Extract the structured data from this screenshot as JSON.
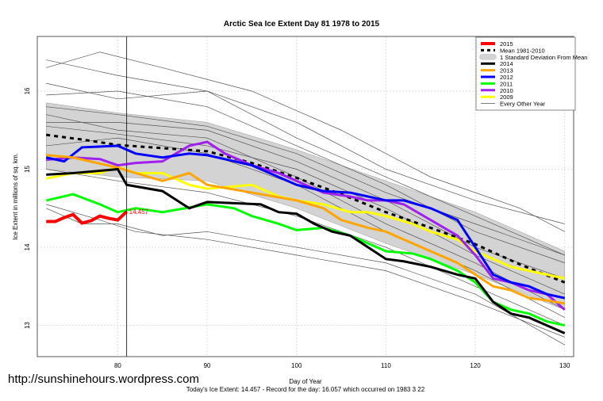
{
  "watermark": "http://sunshinehours.wordpress.com",
  "chart_data": {
    "type": "line",
    "title": "Arctic Sea Ice Extent Day 81 1978 to 2015",
    "xlabel": "Day of Year",
    "ylabel": "Ice Extent in millions of sq. km.",
    "subtitle": "Today's Ice Extent: 14.457  - Record for the day: 16.057 which occurred on 1983 3 22",
    "xlim": [
      71,
      131
    ],
    "ylim": [
      12.6,
      16.7
    ],
    "xticks": [
      80,
      90,
      100,
      110,
      120,
      130
    ],
    "yticks": [
      13,
      14,
      15,
      16
    ],
    "grid": true,
    "legend_position": "top-right",
    "marker_day": 81,
    "marker_label": "14.457",
    "sd_band": {
      "name": "1 Standard Deviation From Mean",
      "color": "#d3d3d3",
      "upper": [
        [
          72,
          15.85
        ],
        [
          80,
          15.72
        ],
        [
          90,
          15.6
        ],
        [
          100,
          15.25
        ],
        [
          110,
          14.85
        ],
        [
          120,
          14.45
        ],
        [
          130,
          13.95
        ]
      ],
      "lower": [
        [
          72,
          15.0
        ],
        [
          80,
          14.9
        ],
        [
          90,
          14.85
        ],
        [
          100,
          14.5
        ],
        [
          110,
          14.05
        ],
        [
          120,
          13.65
        ],
        [
          130,
          13.2
        ]
      ]
    },
    "mean": {
      "name": "Mean 1981-2010",
      "color": "#000000",
      "points": [
        [
          72,
          15.44
        ],
        [
          76,
          15.38
        ],
        [
          80,
          15.31
        ],
        [
          85,
          15.27
        ],
        [
          90,
          15.23
        ],
        [
          95,
          15.08
        ],
        [
          100,
          14.89
        ],
        [
          105,
          14.68
        ],
        [
          110,
          14.45
        ],
        [
          115,
          14.25
        ],
        [
          120,
          14.04
        ],
        [
          125,
          13.78
        ],
        [
          130,
          13.55
        ]
      ]
    },
    "series": [
      {
        "name": "2015",
        "color": "#ff0000",
        "width": 4,
        "points": [
          [
            72,
            14.33
          ],
          [
            73,
            14.33
          ],
          [
            74,
            14.38
          ],
          [
            75,
            14.42
          ],
          [
            76,
            14.31
          ],
          [
            77,
            14.34
          ],
          [
            78,
            14.4
          ],
          [
            79,
            14.37
          ],
          [
            80,
            14.35
          ],
          [
            81,
            14.457
          ]
        ]
      },
      {
        "name": "2014",
        "color": "#000000",
        "width": 3,
        "points": [
          [
            72,
            14.93
          ],
          [
            75,
            14.95
          ],
          [
            78,
            14.98
          ],
          [
            80,
            15.0
          ],
          [
            81,
            14.8
          ],
          [
            85,
            14.72
          ],
          [
            88,
            14.5
          ],
          [
            90,
            14.58
          ],
          [
            96,
            14.55
          ],
          [
            98,
            14.45
          ],
          [
            100,
            14.43
          ],
          [
            102,
            14.3
          ],
          [
            104,
            14.2
          ],
          [
            106,
            14.15
          ],
          [
            108,
            14.0
          ],
          [
            110,
            13.85
          ],
          [
            112,
            13.82
          ],
          [
            115,
            13.75
          ],
          [
            118,
            13.65
          ],
          [
            120,
            13.6
          ],
          [
            122,
            13.3
          ],
          [
            124,
            13.15
          ],
          [
            126,
            13.1
          ],
          [
            128,
            13.0
          ],
          [
            130,
            12.9
          ]
        ]
      },
      {
        "name": "2013",
        "color": "#ffa500",
        "width": 3,
        "points": [
          [
            72,
            15.18
          ],
          [
            75,
            15.15
          ],
          [
            80,
            15.02
          ],
          [
            82,
            14.95
          ],
          [
            85,
            14.85
          ],
          [
            88,
            14.95
          ],
          [
            90,
            14.8
          ],
          [
            95,
            14.7
          ],
          [
            100,
            14.6
          ],
          [
            103,
            14.5
          ],
          [
            105,
            14.35
          ],
          [
            108,
            14.25
          ],
          [
            110,
            14.2
          ],
          [
            112,
            14.1
          ],
          [
            115,
            13.95
          ],
          [
            118,
            13.8
          ],
          [
            120,
            13.65
          ],
          [
            122,
            13.5
          ],
          [
            124,
            13.45
          ],
          [
            126,
            13.35
          ],
          [
            128,
            13.32
          ],
          [
            130,
            13.28
          ]
        ]
      },
      {
        "name": "2012",
        "color": "#0000ff",
        "width": 3,
        "points": [
          [
            72,
            15.15
          ],
          [
            74,
            15.1
          ],
          [
            76,
            15.28
          ],
          [
            80,
            15.3
          ],
          [
            82,
            15.2
          ],
          [
            85,
            15.15
          ],
          [
            88,
            15.2
          ],
          [
            90,
            15.18
          ],
          [
            95,
            15.05
          ],
          [
            98,
            14.9
          ],
          [
            100,
            14.8
          ],
          [
            103,
            14.72
          ],
          [
            106,
            14.7
          ],
          [
            108,
            14.65
          ],
          [
            110,
            14.6
          ],
          [
            112,
            14.6
          ],
          [
            115,
            14.5
          ],
          [
            118,
            14.35
          ],
          [
            120,
            14.0
          ],
          [
            122,
            13.65
          ],
          [
            124,
            13.55
          ],
          [
            126,
            13.5
          ],
          [
            128,
            13.4
          ],
          [
            130,
            13.35
          ]
        ]
      },
      {
        "name": "2011",
        "color": "#00ff00",
        "width": 3,
        "points": [
          [
            72,
            14.6
          ],
          [
            75,
            14.68
          ],
          [
            78,
            14.55
          ],
          [
            80,
            14.45
          ],
          [
            82,
            14.5
          ],
          [
            85,
            14.45
          ],
          [
            90,
            14.55
          ],
          [
            93,
            14.5
          ],
          [
            95,
            14.4
          ],
          [
            98,
            14.3
          ],
          [
            100,
            14.22
          ],
          [
            103,
            14.25
          ],
          [
            106,
            14.15
          ],
          [
            108,
            14.05
          ],
          [
            110,
            13.95
          ],
          [
            113,
            13.92
          ],
          [
            115,
            13.85
          ],
          [
            118,
            13.7
          ],
          [
            120,
            13.55
          ],
          [
            122,
            13.3
          ],
          [
            124,
            13.2
          ],
          [
            126,
            13.15
          ],
          [
            128,
            13.05
          ],
          [
            130,
            13.0
          ]
        ]
      },
      {
        "name": "2010",
        "color": "#a020f0",
        "width": 3,
        "points": [
          [
            72,
            15.12
          ],
          [
            75,
            15.15
          ],
          [
            78,
            15.13
          ],
          [
            80,
            15.05
          ],
          [
            82,
            15.08
          ],
          [
            85,
            15.1
          ],
          [
            88,
            15.3
          ],
          [
            90,
            15.35
          ],
          [
            92,
            15.2
          ],
          [
            95,
            15.05
          ],
          [
            98,
            14.95
          ],
          [
            100,
            14.85
          ],
          [
            103,
            14.7
          ],
          [
            106,
            14.65
          ],
          [
            108,
            14.6
          ],
          [
            110,
            14.6
          ],
          [
            112,
            14.55
          ],
          [
            115,
            14.35
          ],
          [
            118,
            14.15
          ],
          [
            120,
            13.9
          ],
          [
            122,
            13.6
          ],
          [
            124,
            13.55
          ],
          [
            126,
            13.45
          ],
          [
            128,
            13.4
          ],
          [
            130,
            13.2
          ]
        ]
      },
      {
        "name": "2009",
        "color": "#ffff00",
        "width": 3,
        "points": [
          [
            72,
            14.88
          ],
          [
            75,
            14.95
          ],
          [
            78,
            14.95
          ],
          [
            80,
            15.03
          ],
          [
            82,
            14.95
          ],
          [
            85,
            14.95
          ],
          [
            88,
            14.8
          ],
          [
            90,
            14.75
          ],
          [
            95,
            14.8
          ],
          [
            98,
            14.65
          ],
          [
            100,
            14.6
          ],
          [
            103,
            14.55
          ],
          [
            106,
            14.45
          ],
          [
            108,
            14.45
          ],
          [
            110,
            14.4
          ],
          [
            113,
            14.3
          ],
          [
            115,
            14.2
          ],
          [
            118,
            14.1
          ],
          [
            120,
            13.95
          ],
          [
            122,
            13.85
          ],
          [
            124,
            13.75
          ],
          [
            126,
            13.7
          ],
          [
            128,
            13.65
          ],
          [
            130,
            13.6
          ]
        ]
      }
    ],
    "other_years": {
      "name": "Every Other Year",
      "color": "#555555",
      "lines": [
        [
          [
            72,
            16.4
          ],
          [
            80,
            16.2
          ],
          [
            90,
            16.0
          ],
          [
            100,
            15.6
          ],
          [
            110,
            15.0
          ],
          [
            120,
            14.6
          ],
          [
            130,
            14.3
          ]
        ],
        [
          [
            72,
            16.3
          ],
          [
            78,
            16.5
          ],
          [
            85,
            16.3
          ],
          [
            95,
            16.0
          ],
          [
            105,
            15.5
          ],
          [
            115,
            14.9
          ],
          [
            125,
            14.5
          ],
          [
            130,
            14.2
          ]
        ],
        [
          [
            72,
            16.1
          ],
          [
            80,
            15.9
          ],
          [
            90,
            16.0
          ],
          [
            100,
            15.4
          ],
          [
            110,
            14.9
          ],
          [
            120,
            14.4
          ],
          [
            130,
            13.9
          ]
        ],
        [
          [
            72,
            15.95
          ],
          [
            80,
            16.0
          ],
          [
            90,
            15.8
          ],
          [
            100,
            15.3
          ],
          [
            110,
            14.8
          ],
          [
            120,
            14.2
          ],
          [
            130,
            13.8
          ]
        ],
        [
          [
            72,
            15.6
          ],
          [
            80,
            15.6
          ],
          [
            90,
            15.5
          ],
          [
            100,
            15.1
          ],
          [
            110,
            14.6
          ],
          [
            120,
            14.0
          ],
          [
            130,
            13.6
          ]
        ],
        [
          [
            72,
            15.55
          ],
          [
            80,
            15.45
          ],
          [
            90,
            15.3
          ],
          [
            100,
            15.0
          ],
          [
            110,
            14.5
          ],
          [
            120,
            13.9
          ],
          [
            130,
            13.4
          ]
        ],
        [
          [
            72,
            15.7
          ],
          [
            80,
            15.5
          ],
          [
            90,
            15.4
          ],
          [
            100,
            14.9
          ],
          [
            110,
            14.3
          ],
          [
            120,
            13.8
          ],
          [
            130,
            13.2
          ]
        ],
        [
          [
            72,
            15.3
          ],
          [
            80,
            15.4
          ],
          [
            90,
            15.2
          ],
          [
            100,
            14.8
          ],
          [
            110,
            14.2
          ],
          [
            120,
            13.7
          ],
          [
            130,
            13.1
          ]
        ],
        [
          [
            72,
            14.5
          ],
          [
            76,
            14.3
          ],
          [
            80,
            14.3
          ],
          [
            85,
            14.15
          ],
          [
            90,
            14.2
          ],
          [
            100,
            14.0
          ],
          [
            110,
            13.8
          ],
          [
            120,
            13.4
          ],
          [
            130,
            12.75
          ]
        ],
        [
          [
            72,
            14.55
          ],
          [
            78,
            14.35
          ],
          [
            82,
            14.2
          ],
          [
            90,
            14.1
          ],
          [
            100,
            13.9
          ],
          [
            110,
            13.7
          ],
          [
            120,
            13.3
          ],
          [
            130,
            12.85
          ]
        ],
        [
          [
            72,
            15.0
          ],
          [
            80,
            14.85
          ],
          [
            90,
            14.7
          ],
          [
            100,
            14.4
          ],
          [
            110,
            14.0
          ],
          [
            120,
            13.5
          ],
          [
            130,
            13.0
          ]
        ],
        [
          [
            72,
            15.8
          ],
          [
            80,
            15.7
          ],
          [
            90,
            15.55
          ],
          [
            100,
            15.2
          ],
          [
            110,
            14.7
          ],
          [
            120,
            14.3
          ],
          [
            130,
            13.9
          ]
        ]
      ]
    }
  }
}
